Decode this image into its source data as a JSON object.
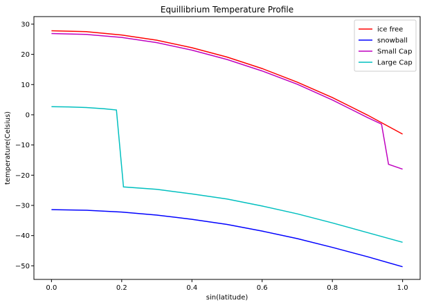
{
  "chart_data": {
    "type": "line",
    "title": "Equillibrium Temperature Profile",
    "xlabel": "sin(latitude)",
    "ylabel": "temperature(Celsius)",
    "xlim": [
      -0.05,
      1.05
    ],
    "ylim": [
      -54.5,
      32.5
    ],
    "xticks": [
      0.0,
      0.2,
      0.4,
      0.6,
      0.8,
      1.0
    ],
    "xtick_labels": [
      "0.0",
      "0.2",
      "0.4",
      "0.6",
      "0.8",
      "1.0"
    ],
    "yticks": [
      -50,
      -40,
      -30,
      -20,
      -10,
      0,
      10,
      20,
      30
    ],
    "ytick_labels": [
      "−50",
      "−40",
      "−30",
      "−20",
      "−10",
      "0",
      "10",
      "20",
      "30"
    ],
    "grid": false,
    "legend_position": "top-right",
    "series": [
      {
        "name": "ice free",
        "color": "#ff0000",
        "x": [
          0.0,
          0.1,
          0.2,
          0.3,
          0.4,
          0.5,
          0.6,
          0.7,
          0.8,
          0.9,
          1.0
        ],
        "y": [
          27.8,
          27.5,
          26.4,
          24.7,
          22.2,
          19.1,
          15.3,
          10.8,
          5.7,
          -0.1,
          -6.4
        ]
      },
      {
        "name": "snowball",
        "color": "#0000ff",
        "x": [
          0.0,
          0.1,
          0.2,
          0.3,
          0.4,
          0.5,
          0.6,
          0.7,
          0.8,
          0.9,
          1.0
        ],
        "y": [
          -31.4,
          -31.6,
          -32.2,
          -33.2,
          -34.6,
          -36.3,
          -38.5,
          -41.0,
          -43.9,
          -47.0,
          -50.3
        ]
      },
      {
        "name": "Small Cap",
        "color": "#bf00bf",
        "x": [
          0.0,
          0.1,
          0.2,
          0.3,
          0.4,
          0.5,
          0.6,
          0.7,
          0.8,
          0.9,
          0.94,
          0.96,
          1.0
        ],
        "y": [
          26.9,
          26.6,
          25.6,
          23.9,
          21.4,
          18.3,
          14.5,
          10.1,
          4.9,
          -0.9,
          -3.1,
          -16.4,
          -18.0
        ]
      },
      {
        "name": "Large Cap",
        "color": "#00bfbf",
        "x": [
          0.0,
          0.05,
          0.1,
          0.15,
          0.185,
          0.205,
          0.3,
          0.4,
          0.5,
          0.6,
          0.7,
          0.8,
          0.9,
          1.0
        ],
        "y": [
          2.7,
          2.6,
          2.4,
          2.0,
          1.6,
          -23.9,
          -24.7,
          -26.2,
          -27.9,
          -30.2,
          -32.8,
          -35.8,
          -39.0,
          -42.2
        ]
      }
    ]
  }
}
